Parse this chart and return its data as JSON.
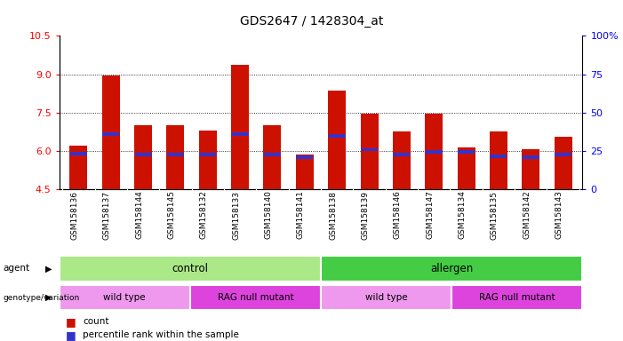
{
  "title": "GDS2647 / 1428304_at",
  "samples": [
    "GSM158136",
    "GSM158137",
    "GSM158144",
    "GSM158145",
    "GSM158132",
    "GSM158133",
    "GSM158140",
    "GSM158141",
    "GSM158138",
    "GSM158139",
    "GSM158146",
    "GSM158147",
    "GSM158134",
    "GSM158135",
    "GSM158142",
    "GSM158143"
  ],
  "bar_values": [
    6.2,
    8.95,
    7.0,
    7.0,
    6.8,
    9.35,
    7.0,
    5.85,
    8.35,
    7.45,
    6.75,
    7.45,
    6.15,
    6.75,
    6.05,
    6.55
  ],
  "blue_values": [
    5.9,
    6.65,
    5.85,
    5.85,
    5.85,
    6.65,
    5.85,
    5.75,
    6.6,
    6.05,
    5.85,
    5.95,
    5.95,
    5.8,
    5.75,
    5.85
  ],
  "ymin": 4.5,
  "ymax": 10.5,
  "yticks_left": [
    4.5,
    6.0,
    7.5,
    9.0,
    10.5
  ],
  "yticks_right": [
    0,
    25,
    50,
    75,
    100
  ],
  "ytick_right_labels": [
    "0",
    "25",
    "50",
    "75",
    "100%"
  ],
  "bar_color": "#cc1100",
  "blue_color": "#3333cc",
  "tick_label_bg": "#d8d8d8",
  "agent_groups": [
    {
      "label": "control",
      "start": 0,
      "end": 8,
      "color": "#aae888"
    },
    {
      "label": "allergen",
      "start": 8,
      "end": 16,
      "color": "#44cc44"
    }
  ],
  "genotype_groups": [
    {
      "label": "wild type",
      "start": 0,
      "end": 4,
      "color": "#ee99ee"
    },
    {
      "label": "RAG null mutant",
      "start": 4,
      "end": 8,
      "color": "#dd44dd"
    },
    {
      "label": "wild type",
      "start": 8,
      "end": 12,
      "color": "#ee99ee"
    },
    {
      "label": "RAG null mutant",
      "start": 12,
      "end": 16,
      "color": "#dd44dd"
    }
  ]
}
